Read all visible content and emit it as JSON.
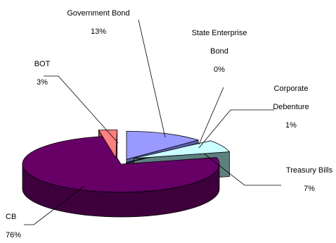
{
  "chart_data": {
    "type": "pie",
    "style": "3d-exploded",
    "title": "",
    "slices": [
      {
        "label": "Government Bond",
        "value": 13,
        "value_label": "13%",
        "color": "#9999FF",
        "side_color": "#5E5EA8"
      },
      {
        "label": "State Enterprise Bond",
        "value": 0,
        "value_label": "0%",
        "color": "#FFFFCC",
        "side_color": "#9E9E7F"
      },
      {
        "label": "Corporate Debenture",
        "value": 1,
        "value_label": "1%",
        "color": "#336666",
        "side_color": "#1F3F3F"
      },
      {
        "label": "Treasury Bills",
        "value": 7,
        "value_label": "7%",
        "color": "#CCFFFF",
        "side_color": "#5E8080"
      },
      {
        "label": "CB",
        "value": 76,
        "value_label": "76%",
        "color": "#660066",
        "side_color": "#3D003D"
      },
      {
        "label": "BOT",
        "value": 3,
        "value_label": "3%",
        "color": "#FF8080",
        "side_color": "#A04848"
      }
    ],
    "label_lines": [
      {
        "lines": [
          "Government Bond"
        ],
        "value_label": "13%"
      },
      {
        "lines": [
          "State Enterprise",
          "Bond"
        ],
        "value_label": "0%"
      },
      {
        "lines": [
          "Corporate",
          "Debenture"
        ],
        "value_label": "1%"
      },
      {
        "lines": [
          "Treasury Bills"
        ],
        "value_label": "7%"
      },
      {
        "lines": [
          "CB"
        ],
        "value_label": "76%"
      },
      {
        "lines": [
          "BOT"
        ],
        "value_label": "3%"
      }
    ]
  }
}
